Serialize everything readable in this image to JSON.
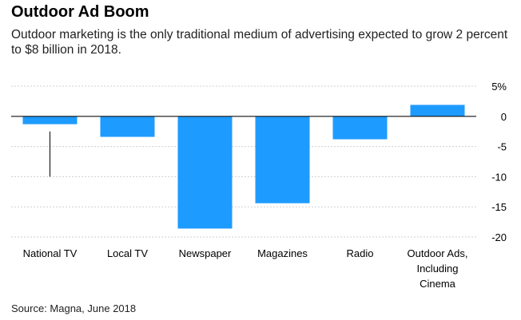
{
  "title": "Outdoor Ad Boom",
  "subtitle": "Outdoor marketing is the only traditional medium of advertising expected to grow 2 percent to $8 billion in 2018.",
  "source": "Source: Magna, June 2018",
  "colors": {
    "bar": "#1e9bff",
    "grid": "#cfcfcf",
    "zero": "#111111",
    "errorbar": "#000000"
  },
  "chart_data": {
    "type": "bar",
    "title": "Outdoor Ad Boom",
    "xlabel": "",
    "ylabel": "",
    "ylim": [
      -20,
      5
    ],
    "yticks": [
      5,
      0,
      -5,
      -10,
      -15,
      -20
    ],
    "ytick_labels": [
      "5%",
      "0",
      "-5",
      "-10",
      "-15",
      "-20"
    ],
    "categories": [
      [
        "National TV"
      ],
      [
        "Local TV"
      ],
      [
        "Newspaper"
      ],
      [
        "Magazines"
      ],
      [
        "Radio"
      ],
      [
        "Outdoor Ads,",
        "Including",
        "Cinema"
      ]
    ],
    "values": [
      -1.3,
      -3.4,
      -18.6,
      -14.4,
      -3.8,
      1.9
    ],
    "annotations": [
      {
        "category": "National TV",
        "type": "range-line",
        "from": -2.5,
        "to": -10
      }
    ]
  }
}
